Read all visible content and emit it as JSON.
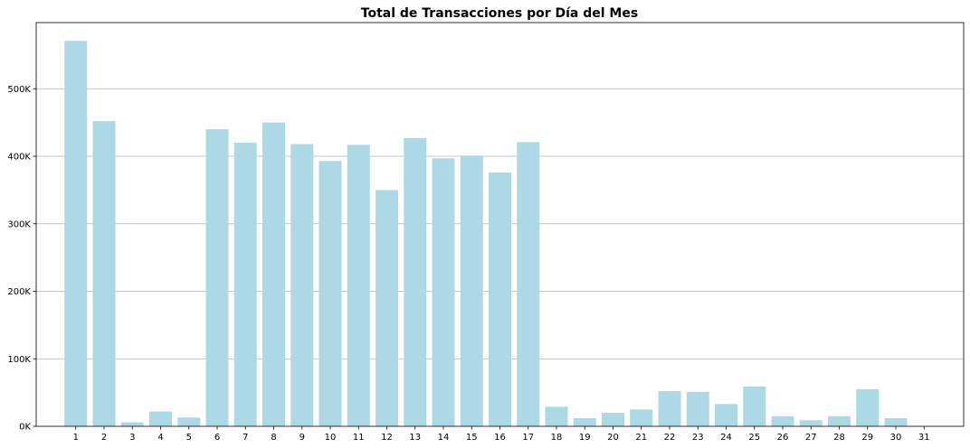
{
  "chart_data": {
    "type": "bar",
    "title": "Total de Transacciones por Día del Mes",
    "xlabel": "",
    "ylabel": "",
    "categories": [
      "1",
      "2",
      "3",
      "4",
      "5",
      "6",
      "7",
      "8",
      "9",
      "10",
      "11",
      "12",
      "13",
      "14",
      "15",
      "16",
      "17",
      "18",
      "19",
      "20",
      "21",
      "22",
      "23",
      "24",
      "25",
      "26",
      "27",
      "28",
      "29",
      "30",
      "31"
    ],
    "values": [
      571000,
      452000,
      6000,
      22000,
      13000,
      440000,
      420000,
      450000,
      418000,
      393000,
      417000,
      350000,
      427000,
      397000,
      401000,
      376000,
      421000,
      29000,
      12000,
      20000,
      25000,
      52000,
      51000,
      33000,
      59000,
      15000,
      9000,
      15000,
      55000,
      12000,
      0
    ],
    "ylim": [
      0,
      598000
    ],
    "y_ticks": [
      0,
      100000,
      200000,
      300000,
      400000,
      500000
    ],
    "y_tick_labels": [
      "0K",
      "100K",
      "200K",
      "300K",
      "400K",
      "500K"
    ],
    "grid": "horizontal",
    "bar_color": "#add8e6"
  }
}
